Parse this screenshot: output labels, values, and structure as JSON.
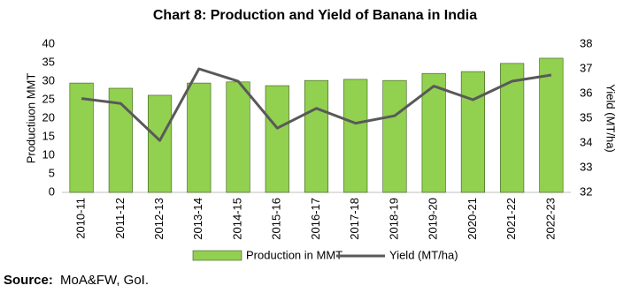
{
  "chart_data": {
    "type": "bar_line",
    "title": "Chart 8: Production and Yield of Banana in India",
    "categories": [
      "2010-11",
      "2011-12",
      "2012-13",
      "2013-14",
      "2014-15",
      "2015-16",
      "2016-17",
      "2017-18",
      "2018-19",
      "2019-20",
      "2020-21",
      "2021-22",
      "2022-23"
    ],
    "series": [
      {
        "name": "Production in MMT",
        "type": "bar",
        "color": "#92d050",
        "values": [
          29.5,
          28.1,
          26.2,
          29.5,
          29.8,
          28.8,
          30.2,
          30.5,
          30.2,
          32.1,
          32.6,
          34.8,
          36.2
        ]
      },
      {
        "name": "Yield (MT/ha)",
        "type": "line",
        "axis": "y2",
        "color": "#595959",
        "values": [
          35.8,
          35.6,
          34.1,
          37.0,
          36.5,
          34.6,
          35.4,
          34.8,
          35.1,
          36.3,
          35.75,
          36.5,
          36.75
        ]
      }
    ],
    "ylabel": "Productiuon MMT",
    "y2label": "Yield (MT/ha)",
    "ylim": [
      0,
      40
    ],
    "yticks": [
      0,
      5,
      10,
      15,
      20,
      25,
      30,
      35,
      40
    ],
    "y2lim": [
      32,
      38
    ],
    "y2ticks": [
      32,
      33,
      34,
      35,
      36,
      37,
      38
    ],
    "grid": false,
    "legend": "bottom"
  },
  "source_label": "Source:",
  "source_text": "MoA&FW, GoI."
}
